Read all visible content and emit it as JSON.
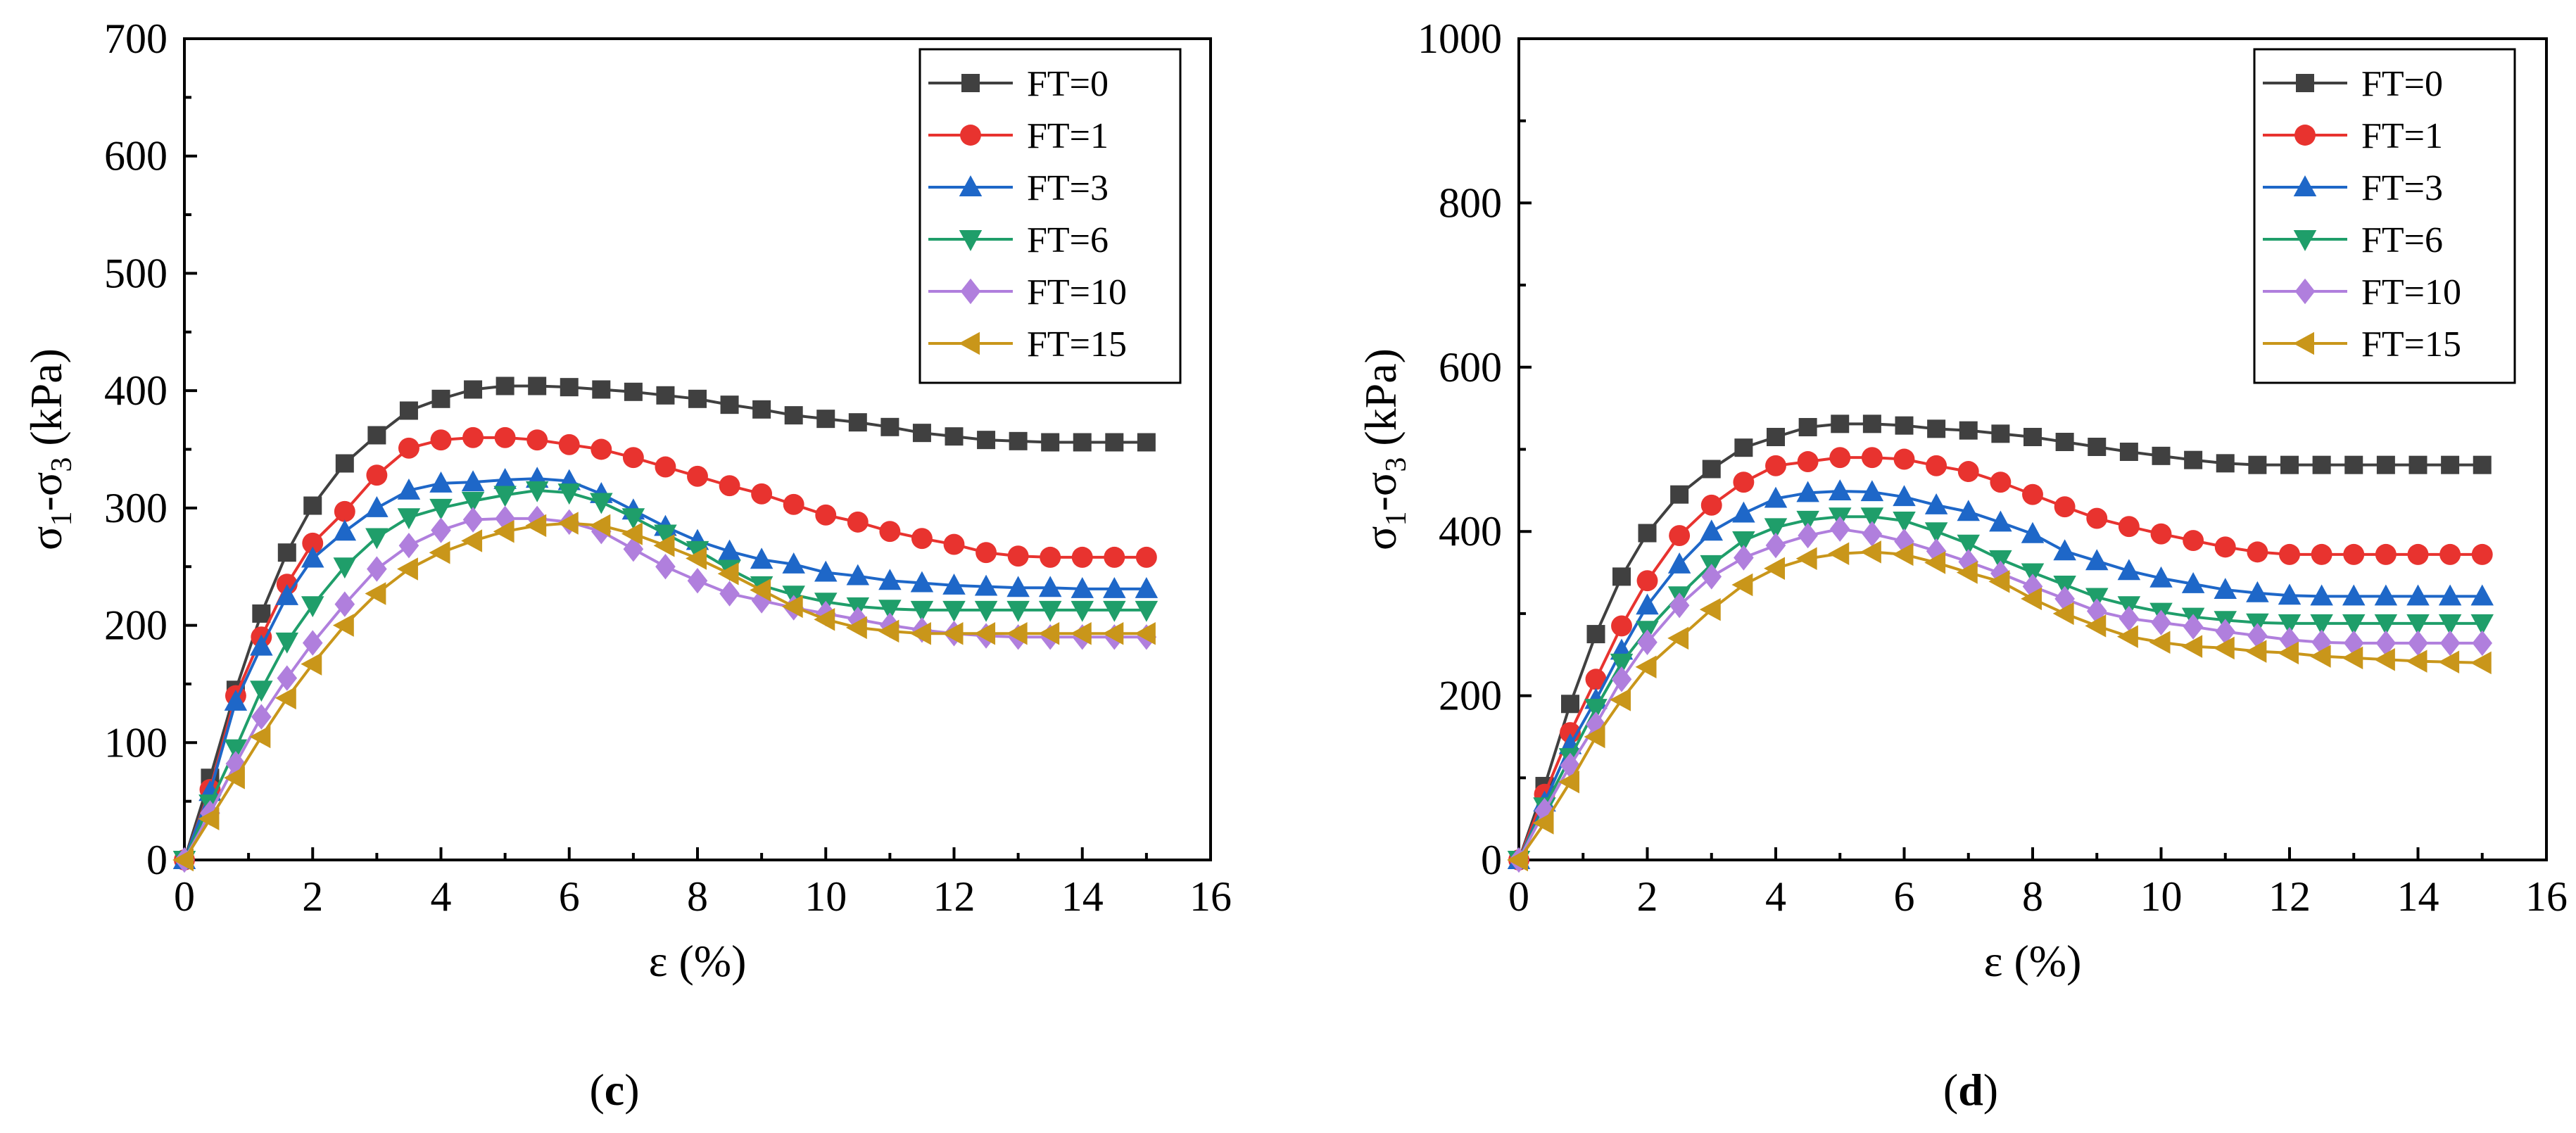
{
  "chart_data": [
    {
      "type": "line",
      "panel_label": "c",
      "xlabel": "ε (%)",
      "ylabel_parts": [
        "σ",
        "1",
        "-σ",
        "3",
        " (kPa)"
      ],
      "xlim": [
        0,
        16
      ],
      "ylim": [
        0,
        700
      ],
      "xticks": [
        0,
        2,
        4,
        6,
        8,
        10,
        12,
        14,
        16
      ],
      "yticks": [
        0,
        100,
        200,
        300,
        400,
        500,
        600,
        700
      ],
      "legend_position": "top-right",
      "x": [
        0,
        0.4,
        0.8,
        1.2,
        1.6,
        2.0,
        2.5,
        3.0,
        3.5,
        4.0,
        4.5,
        5.0,
        5.5,
        6.0,
        6.5,
        7.0,
        7.5,
        8.0,
        8.5,
        9.0,
        9.5,
        10.0,
        10.5,
        11.0,
        11.5,
        12.0,
        12.5,
        13.0,
        13.5,
        14.0,
        14.5,
        15.0
      ],
      "series": [
        {
          "name": "FT=0",
          "color": "#404040",
          "marker": "square",
          "values": [
            0,
            70,
            145,
            210,
            262,
            302,
            338,
            362,
            383,
            393,
            401,
            404,
            404,
            403,
            401,
            399,
            396,
            393,
            388,
            384,
            379,
            376,
            373,
            369,
            364,
            361,
            358,
            357,
            356,
            356,
            356,
            356
          ]
        },
        {
          "name": "FT=1",
          "color": "#e8332f",
          "marker": "circle",
          "values": [
            0,
            60,
            140,
            190,
            235,
            270,
            297,
            328,
            351,
            358,
            360,
            360,
            358,
            354,
            350,
            343,
            335,
            327,
            319,
            312,
            303,
            294,
            288,
            280,
            274,
            269,
            262,
            259,
            258,
            258,
            258,
            258
          ]
        },
        {
          "name": "FT=3",
          "color": "#1e67c8",
          "marker": "triangle-up",
          "values": [
            0,
            58,
            135,
            182,
            225,
            257,
            280,
            300,
            315,
            321,
            322,
            324,
            325,
            323,
            312,
            298,
            284,
            272,
            263,
            256,
            252,
            245,
            242,
            238,
            236,
            234,
            233,
            232,
            232,
            231,
            231,
            231
          ]
        },
        {
          "name": "FT=6",
          "color": "#1f9e6a",
          "marker": "triangle-down",
          "values": [
            0,
            48,
            95,
            145,
            186,
            217,
            250,
            275,
            292,
            300,
            306,
            311,
            315,
            313,
            305,
            292,
            278,
            264,
            248,
            234,
            226,
            220,
            216,
            214,
            213,
            213,
            213,
            213,
            213,
            213,
            213,
            213
          ]
        },
        {
          "name": "FT=10",
          "color": "#b07fdd",
          "marker": "diamond",
          "values": [
            0,
            40,
            82,
            122,
            155,
            185,
            218,
            248,
            268,
            281,
            290,
            291,
            291,
            288,
            280,
            265,
            250,
            238,
            227,
            221,
            215,
            210,
            205,
            200,
            196,
            193,
            191,
            190,
            190,
            190,
            190,
            190
          ]
        },
        {
          "name": "FT=15",
          "color": "#c9961a",
          "marker": "triangle-left",
          "values": [
            0,
            35,
            70,
            105,
            138,
            167,
            200,
            227,
            248,
            262,
            272,
            280,
            285,
            287,
            285,
            278,
            268,
            257,
            244,
            230,
            216,
            205,
            198,
            195,
            193,
            193,
            193,
            193,
            193,
            193,
            193,
            193
          ]
        }
      ]
    },
    {
      "type": "line",
      "panel_label": "d",
      "xlabel": "ε (%)",
      "ylabel_parts": [
        "σ",
        "1",
        "-σ",
        "3",
        " (kPa)"
      ],
      "xlim": [
        0,
        16
      ],
      "ylim": [
        0,
        1000
      ],
      "xticks": [
        0,
        2,
        4,
        6,
        8,
        10,
        12,
        14,
        16
      ],
      "yticks": [
        0,
        200,
        400,
        600,
        800,
        1000
      ],
      "legend_position": "top-right",
      "x": [
        0,
        0.4,
        0.8,
        1.2,
        1.6,
        2.0,
        2.5,
        3.0,
        3.5,
        4.0,
        4.5,
        5.0,
        5.5,
        6.0,
        6.5,
        7.0,
        7.5,
        8.0,
        8.5,
        9.0,
        9.5,
        10.0,
        10.5,
        11.0,
        11.5,
        12.0,
        12.5,
        13.0,
        13.5,
        14.0,
        14.5,
        15.0
      ],
      "series": [
        {
          "name": "FT=0",
          "color": "#404040",
          "marker": "square",
          "values": [
            0,
            90,
            190,
            275,
            345,
            398,
            445,
            476,
            502,
            515,
            527,
            531,
            531,
            529,
            525,
            523,
            519,
            515,
            509,
            503,
            497,
            492,
            487,
            483,
            481,
            481,
            481,
            481,
            481,
            481,
            481,
            481
          ]
        },
        {
          "name": "FT=1",
          "color": "#e8332f",
          "marker": "circle",
          "values": [
            0,
            80,
            155,
            220,
            285,
            340,
            395,
            432,
            460,
            480,
            485,
            490,
            490,
            488,
            480,
            473,
            460,
            445,
            430,
            416,
            406,
            397,
            389,
            381,
            375,
            372,
            372,
            372,
            372,
            372,
            372,
            372
          ]
        },
        {
          "name": "FT=3",
          "color": "#1e67c8",
          "marker": "triangle-up",
          "values": [
            0,
            70,
            140,
            195,
            255,
            310,
            360,
            400,
            422,
            440,
            447,
            449,
            448,
            442,
            432,
            424,
            411,
            397,
            376,
            364,
            352,
            343,
            336,
            329,
            325,
            322,
            321,
            321,
            321,
            321,
            321,
            321
          ]
        },
        {
          "name": "FT=6",
          "color": "#1f9e6a",
          "marker": "triangle-down",
          "values": [
            0,
            65,
            125,
            185,
            240,
            280,
            322,
            360,
            389,
            405,
            414,
            418,
            418,
            413,
            400,
            385,
            366,
            350,
            335,
            320,
            310,
            302,
            296,
            292,
            289,
            288,
            288,
            288,
            288,
            288,
            288,
            288
          ]
        },
        {
          "name": "FT=10",
          "color": "#b07fdd",
          "marker": "diamond",
          "values": [
            0,
            60,
            115,
            165,
            220,
            265,
            310,
            345,
            368,
            383,
            395,
            403,
            397,
            388,
            376,
            363,
            349,
            333,
            318,
            303,
            294,
            289,
            284,
            278,
            273,
            268,
            265,
            264,
            264,
            264,
            264,
            264
          ]
        },
        {
          "name": "FT=15",
          "color": "#c9961a",
          "marker": "triangle-left",
          "values": [
            0,
            45,
            95,
            150,
            195,
            235,
            270,
            305,
            335,
            355,
            367,
            373,
            375,
            372,
            362,
            350,
            339,
            318,
            300,
            285,
            272,
            265,
            260,
            258,
            254,
            252,
            248,
            246,
            244,
            242,
            241,
            240
          ]
        }
      ]
    }
  ]
}
